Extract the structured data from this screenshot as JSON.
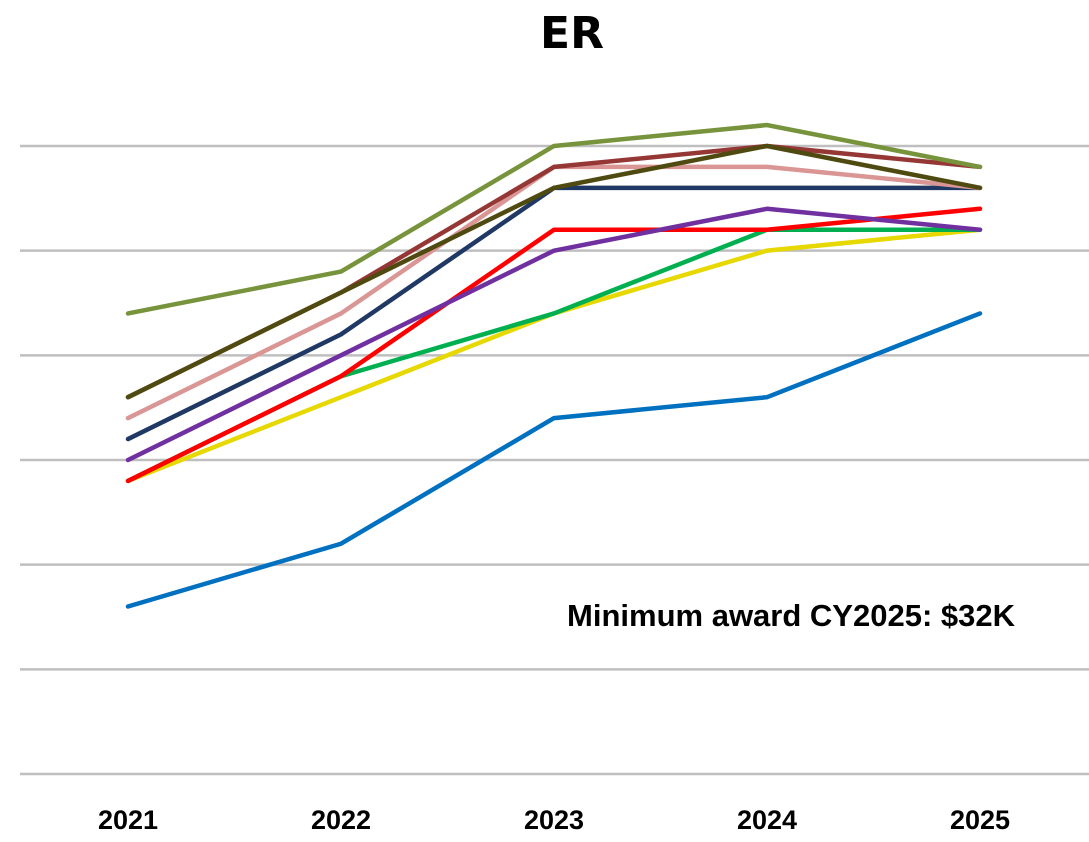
{
  "chart_data": {
    "type": "line",
    "title": "ER",
    "annotation": "Minimum award CY2025: $32K",
    "categories": [
      "2021",
      "2022",
      "2023",
      "2024",
      "2025"
    ],
    "ylim": [
      0,
      7
    ],
    "yticks": [
      0,
      1,
      2,
      3,
      4,
      5,
      6
    ],
    "grid": true,
    "series": [
      {
        "color": "#0070c0",
        "values": [
          1.6,
          2.2,
          3.4,
          3.6,
          4.4
        ]
      },
      {
        "color": "#e6d800",
        "values": [
          2.8,
          3.6,
          4.4,
          5.0,
          5.2
        ]
      },
      {
        "color": "#00b050",
        "values": [
          2.8,
          3.8,
          4.4,
          5.2,
          5.2
        ]
      },
      {
        "color": "#ff0000",
        "values": [
          2.8,
          3.8,
          5.2,
          5.2,
          5.4
        ]
      },
      {
        "color": "#7030a0",
        "values": [
          3.0,
          4.0,
          5.0,
          5.4,
          5.2
        ]
      },
      {
        "color": "#1f3864",
        "values": [
          3.2,
          4.2,
          5.6,
          5.6,
          5.6
        ]
      },
      {
        "color": "#d99694",
        "values": [
          3.4,
          4.4,
          5.8,
          5.8,
          5.6
        ]
      },
      {
        "color": "#953735",
        "values": [
          3.6,
          4.6,
          5.8,
          6.0,
          5.8
        ]
      },
      {
        "color": "#4f4a10",
        "values": [
          3.6,
          4.6,
          5.6,
          6.0,
          5.6
        ]
      },
      {
        "color": "#77933c",
        "values": [
          4.4,
          4.8,
          6.0,
          6.2,
          5.8
        ]
      }
    ]
  }
}
